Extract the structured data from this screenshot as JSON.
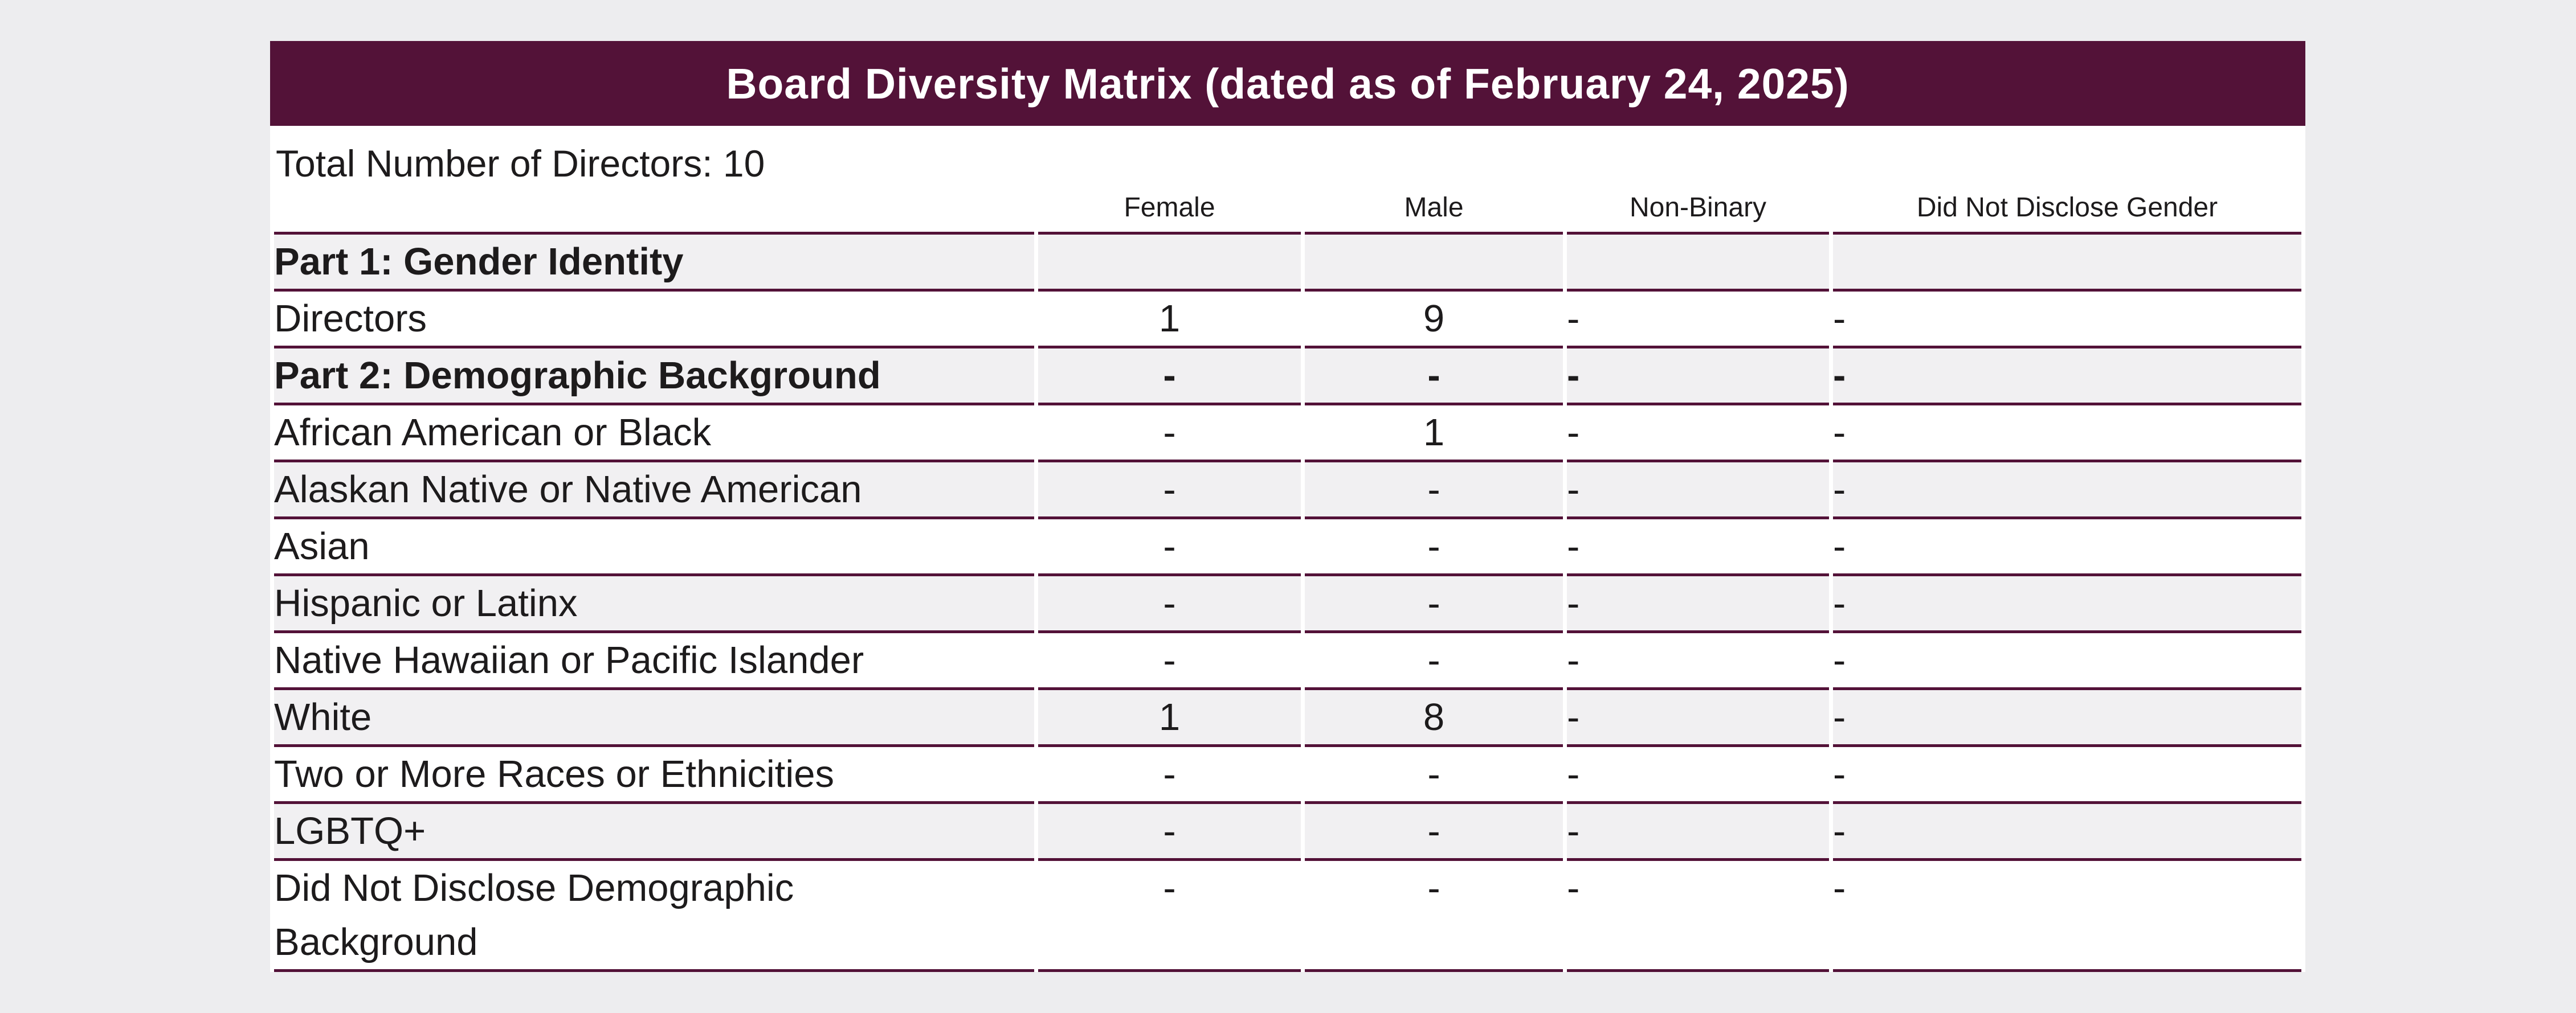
{
  "title_bar": {
    "text": "Board Diversity Matrix (dated as of February 24, 2025)"
  },
  "summary": {
    "total_directors_label": "Total Number of Directors: 10"
  },
  "table": {
    "columns": [
      "",
      "Female",
      "Male",
      "Non-Binary",
      "Did Not Disclose Gender"
    ],
    "rows": [
      {
        "label": "Part 1: Gender Identity",
        "bold": true,
        "values": [
          "",
          "",
          "",
          ""
        ]
      },
      {
        "label": "Directors",
        "bold": false,
        "values": [
          "1",
          "9",
          "-",
          "-"
        ]
      },
      {
        "label": "Part 2: Demographic Background",
        "bold": true,
        "values": [
          "-",
          "-",
          "-",
          "-"
        ]
      },
      {
        "label": "African American or Black",
        "bold": false,
        "values": [
          "-",
          "1",
          "-",
          "-"
        ]
      },
      {
        "label": "Alaskan Native or Native American",
        "bold": false,
        "values": [
          "-",
          "-",
          "-",
          "-"
        ]
      },
      {
        "label": "Asian",
        "bold": false,
        "values": [
          "-",
          "-",
          "-",
          "-"
        ]
      },
      {
        "label": "Hispanic or Latinx",
        "bold": false,
        "values": [
          "-",
          "-",
          "-",
          "-"
        ]
      },
      {
        "label": "Native Hawaiian or Pacific Islander",
        "bold": false,
        "values": [
          "-",
          "-",
          "-",
          "-"
        ]
      },
      {
        "label": "White",
        "bold": false,
        "values": [
          "1",
          "8",
          "-",
          "-"
        ]
      },
      {
        "label": "Two or More Races or Ethnicities",
        "bold": false,
        "values": [
          "-",
          "-",
          "-",
          "-"
        ]
      },
      {
        "label": "LGBTQ+",
        "bold": false,
        "values": [
          "-",
          "-",
          "-",
          "-"
        ]
      },
      {
        "label": "Did Not Disclose Demographic\nBackground",
        "bold": false,
        "values": [
          "-",
          "-",
          "-",
          "-"
        ]
      }
    ]
  },
  "colors": {
    "accent_maroon": "#531238",
    "page_background": "#ededef",
    "stripe_background": "#f1f0f2",
    "row_background": "#ffffff",
    "title_text": "#ffffff",
    "body_text": "#1d1b1c"
  }
}
